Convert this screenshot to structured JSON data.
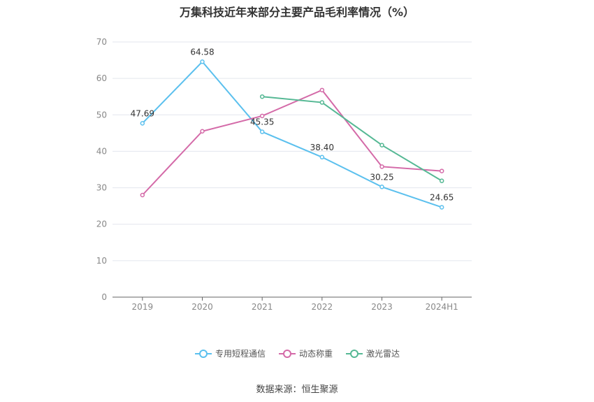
{
  "chart_data": {
    "type": "line",
    "title": "万集科技近年来部分主要产品毛利率情况（%）",
    "categories": [
      "2019",
      "2020",
      "2021",
      "2022",
      "2023",
      "2024H1"
    ],
    "ylim": [
      0,
      70
    ],
    "yticks": [
      "0",
      "10",
      "20",
      "30",
      "40",
      "50",
      "60",
      "70"
    ],
    "grid": true,
    "legend_position": "bottom",
    "series": [
      {
        "name": "专用短程通信",
        "color": "#5bc0ee",
        "values": [
          47.69,
          64.58,
          45.35,
          38.4,
          30.25,
          24.65
        ],
        "labels": [
          "47.69",
          "64.58",
          "45.35",
          "38.40",
          "30.25",
          "24.65"
        ]
      },
      {
        "name": "动态称重",
        "color": "#d46aa8",
        "values": [
          28.0,
          45.5,
          49.7,
          56.8,
          35.8,
          34.6
        ]
      },
      {
        "name": "激光雷达",
        "color": "#55b894",
        "values": [
          null,
          null,
          55.0,
          53.4,
          41.7,
          31.9
        ]
      }
    ]
  },
  "source": "数据来源：恒生聚源"
}
